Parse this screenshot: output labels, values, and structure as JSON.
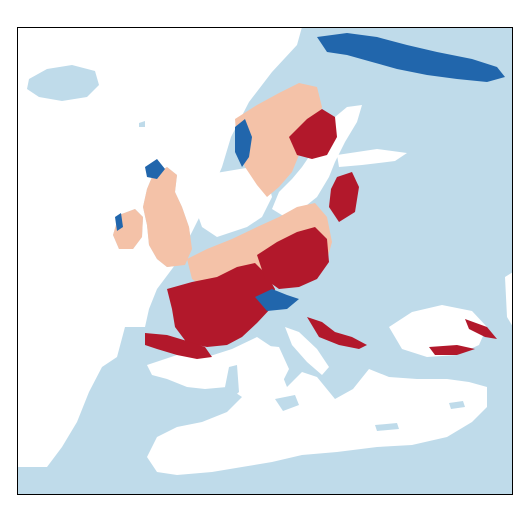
{
  "map": {
    "colors": {
      "land": "#bfdbea",
      "sea": "#ffffff",
      "strong_gain": "#b2182b",
      "weak_gain": "#f4c2a8",
      "loss": "#2166ac",
      "frame": "#000000"
    }
  }
}
